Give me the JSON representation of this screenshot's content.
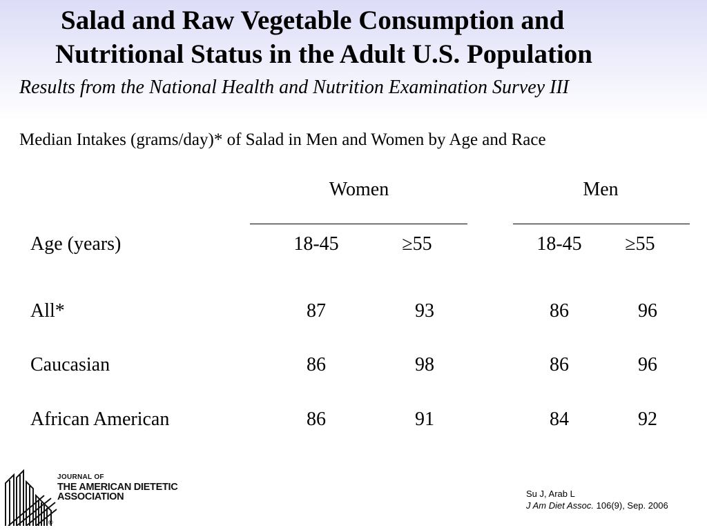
{
  "title": {
    "line1": "Salad and Raw Vegetable Consumption and",
    "line2": "Nutritional Status in the Adult U.S. Population"
  },
  "subtitle": "Results from the National Health and Nutrition Examination Survey III",
  "table": {
    "caption": "Median Intakes (grams/day)* of Salad in Men and Women by Age and Race",
    "groups": [
      "Women",
      "Men"
    ],
    "row_header": "Age (years)",
    "columns": [
      "18-45",
      "≥55",
      "18-45",
      "≥55"
    ],
    "rows": [
      {
        "label": "All*",
        "values": [
          "87",
          "93",
          "86",
          "96"
        ]
      },
      {
        "label": "Caucasian",
        "values": [
          "86",
          "98",
          "86",
          "96"
        ]
      },
      {
        "label": "African American",
        "values": [
          "86",
          "91",
          "84",
          "92"
        ]
      }
    ]
  },
  "journal_logo": {
    "line1": "JOURNAL OF",
    "line2": "THE AMERICAN DIETETIC",
    "line3": "ASSOCIATION",
    "mark": "®"
  },
  "citation": {
    "authors": "Su J, Arab L",
    "journal": "J Am Diet Assoc.",
    "details": " 106(9), Sep. 2006"
  }
}
